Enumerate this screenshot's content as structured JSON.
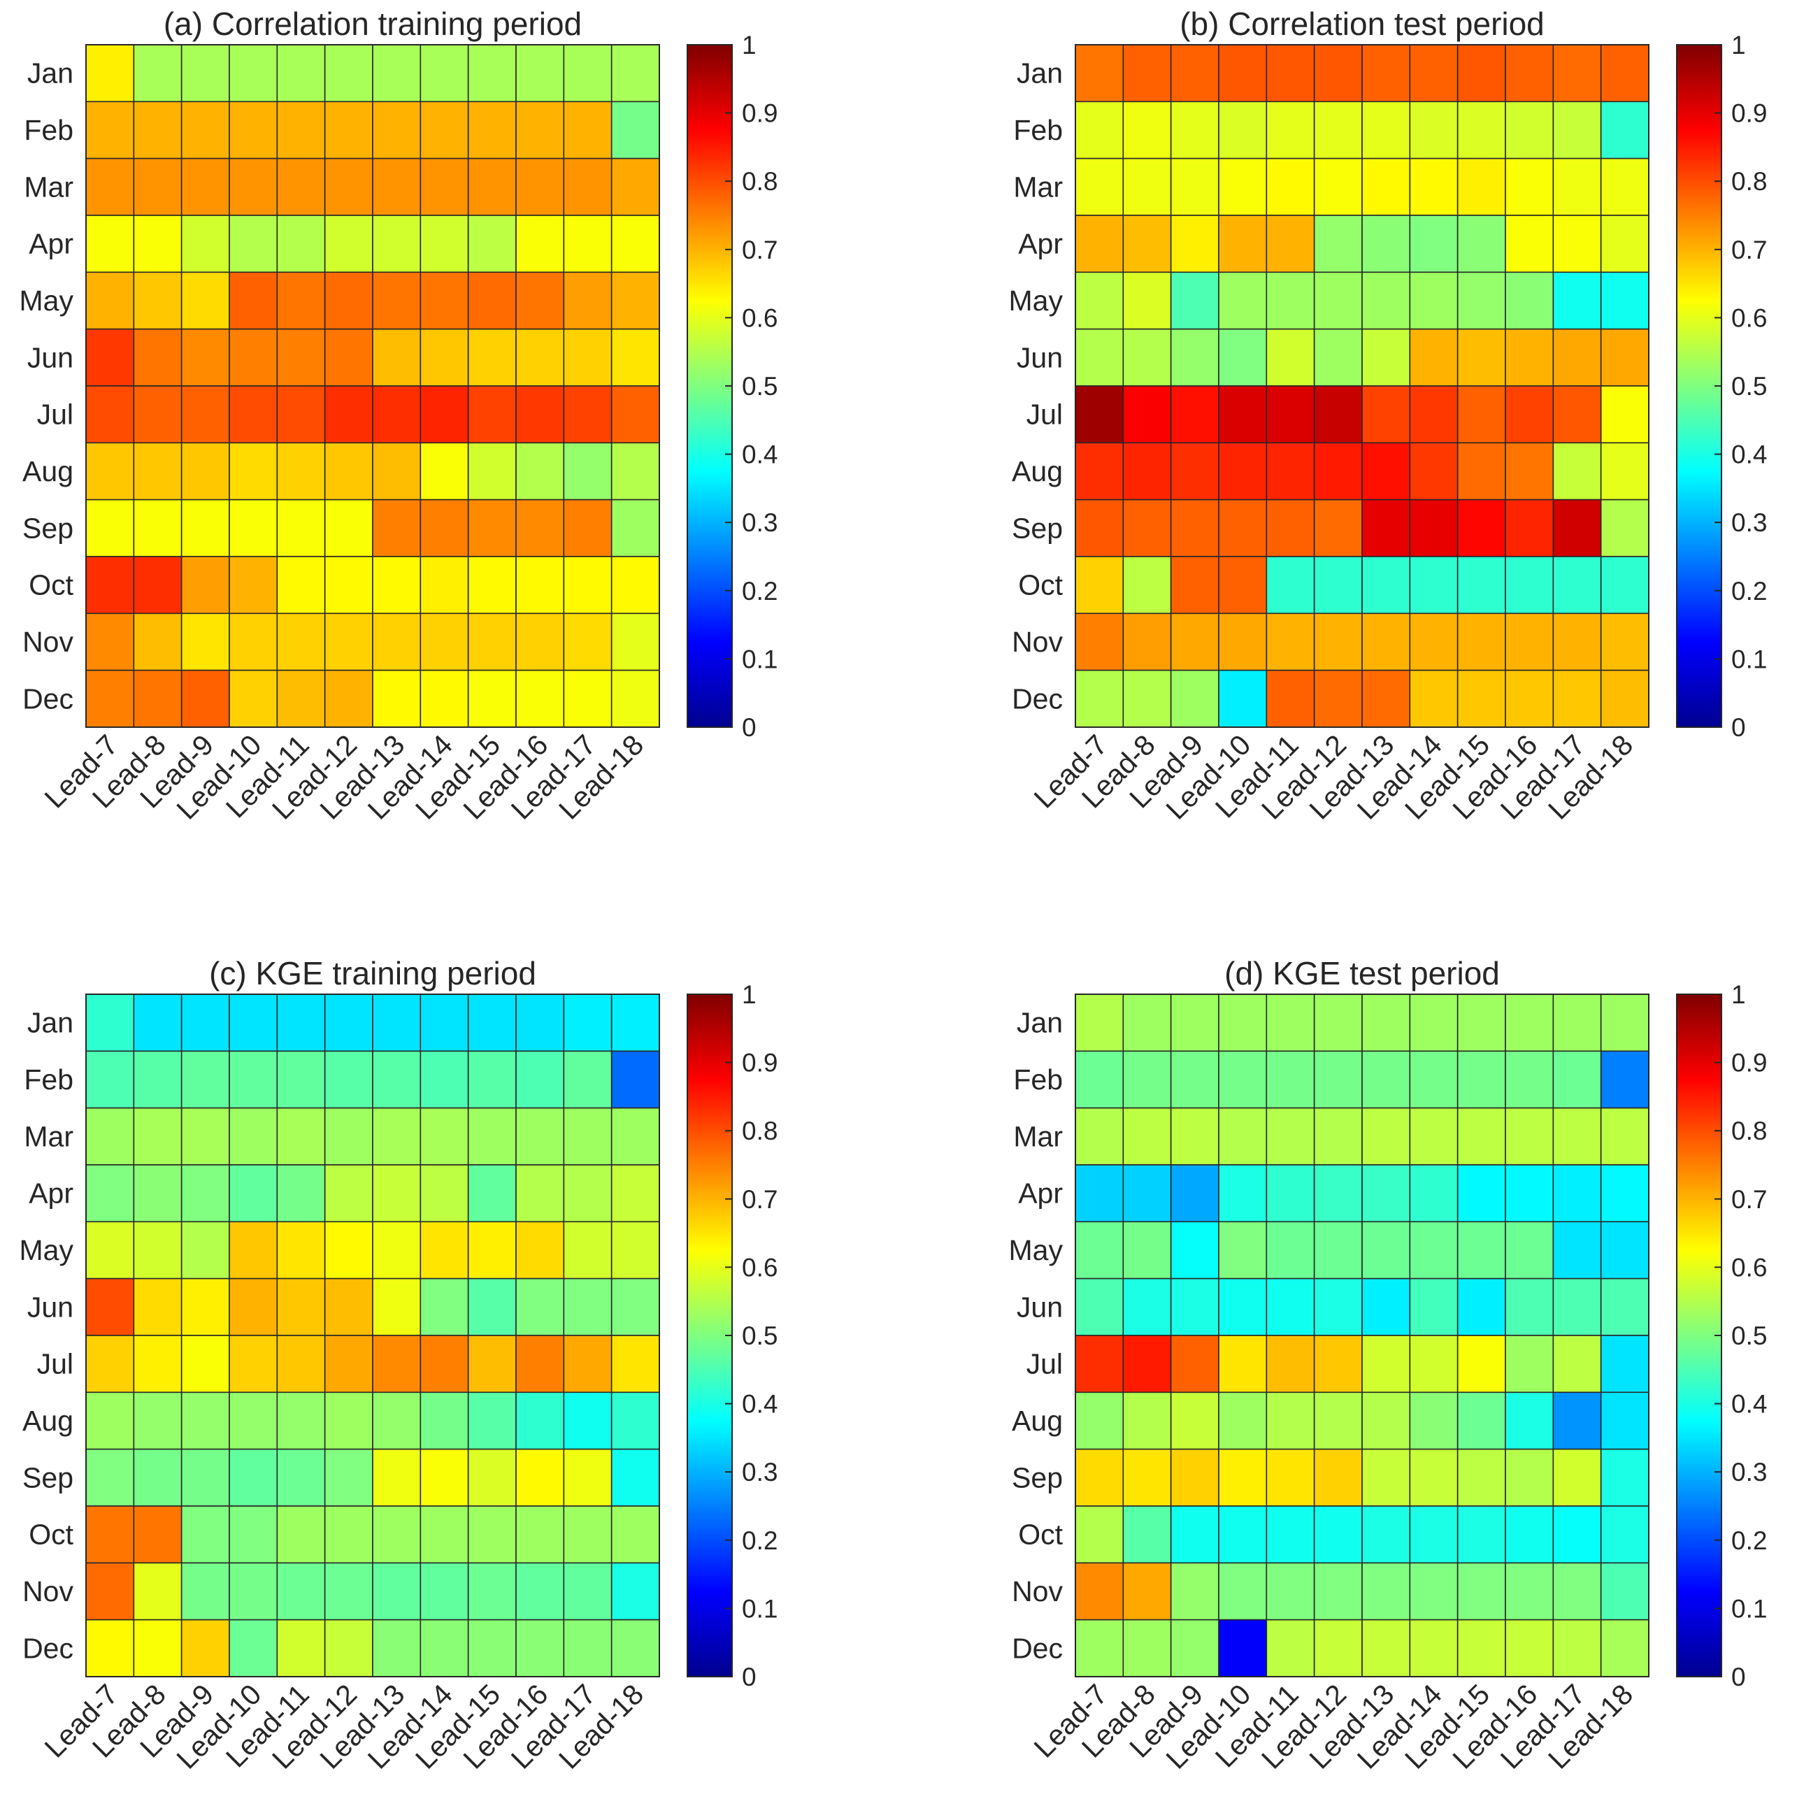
{
  "colormap": {
    "name": "jet",
    "stops": [
      "#00008F",
      "#0000FF",
      "#00FFFF",
      "#FFFF00",
      "#FF0000",
      "#800000"
    ],
    "stop_positions": [
      0,
      0.125,
      0.375,
      0.625,
      0.875,
      1
    ]
  },
  "chart_data": [
    {
      "type": "heatmap",
      "title": "(a) Correlation training period",
      "rows": [
        "Jan",
        "Feb",
        "Mar",
        "Apr",
        "May",
        "Jun",
        "Jul",
        "Aug",
        "Sep",
        "Oct",
        "Nov",
        "Dec"
      ],
      "columns": [
        "Lead-7",
        "Lead-8",
        "Lead-9",
        "Lead-10",
        "Lead-11",
        "Lead-12",
        "Lead-13",
        "Lead-14",
        "Lead-15",
        "Lead-16",
        "Lead-17",
        "Lead-18"
      ],
      "zlim": [
        0,
        1
      ],
      "colorbar_ticks": [
        "0",
        "0.1",
        "0.2",
        "0.3",
        "0.4",
        "0.5",
        "0.6",
        "0.7",
        "0.8",
        "0.9",
        "1"
      ],
      "values": [
        [
          0.64,
          0.54,
          0.54,
          0.54,
          0.54,
          0.54,
          0.54,
          0.54,
          0.54,
          0.54,
          0.54,
          0.54
        ],
        [
          0.7,
          0.7,
          0.7,
          0.7,
          0.7,
          0.7,
          0.7,
          0.7,
          0.7,
          0.7,
          0.7,
          0.49
        ],
        [
          0.73,
          0.73,
          0.73,
          0.73,
          0.73,
          0.73,
          0.73,
          0.73,
          0.73,
          0.73,
          0.73,
          0.71
        ],
        [
          0.62,
          0.62,
          0.58,
          0.55,
          0.55,
          0.58,
          0.58,
          0.58,
          0.56,
          0.62,
          0.62,
          0.62
        ],
        [
          0.7,
          0.68,
          0.66,
          0.78,
          0.76,
          0.77,
          0.76,
          0.76,
          0.77,
          0.76,
          0.72,
          0.7
        ],
        [
          0.82,
          0.76,
          0.74,
          0.75,
          0.75,
          0.76,
          0.69,
          0.68,
          0.67,
          0.67,
          0.67,
          0.65
        ],
        [
          0.8,
          0.78,
          0.78,
          0.8,
          0.8,
          0.83,
          0.83,
          0.84,
          0.81,
          0.82,
          0.81,
          0.78
        ],
        [
          0.68,
          0.68,
          0.68,
          0.66,
          0.67,
          0.68,
          0.69,
          0.62,
          0.58,
          0.55,
          0.52,
          0.55
        ],
        [
          0.62,
          0.62,
          0.62,
          0.62,
          0.62,
          0.62,
          0.75,
          0.75,
          0.74,
          0.74,
          0.75,
          0.53
        ],
        [
          0.83,
          0.83,
          0.72,
          0.7,
          0.63,
          0.63,
          0.63,
          0.64,
          0.63,
          0.63,
          0.63,
          0.63
        ],
        [
          0.74,
          0.69,
          0.65,
          0.67,
          0.67,
          0.67,
          0.67,
          0.67,
          0.67,
          0.67,
          0.66,
          0.6
        ],
        [
          0.75,
          0.76,
          0.78,
          0.67,
          0.69,
          0.7,
          0.63,
          0.63,
          0.62,
          0.62,
          0.62,
          0.61
        ]
      ]
    },
    {
      "type": "heatmap",
      "title": "(b) Correlation test period",
      "rows": [
        "Jan",
        "Feb",
        "Mar",
        "Apr",
        "May",
        "Jun",
        "Jul",
        "Aug",
        "Sep",
        "Oct",
        "Nov",
        "Dec"
      ],
      "columns": [
        "Lead-7",
        "Lead-8",
        "Lead-9",
        "Lead-10",
        "Lead-11",
        "Lead-12",
        "Lead-13",
        "Lead-14",
        "Lead-15",
        "Lead-16",
        "Lead-17",
        "Lead-18"
      ],
      "zlim": [
        0,
        1
      ],
      "colorbar_ticks": [
        "0",
        "0.1",
        "0.2",
        "0.3",
        "0.4",
        "0.5",
        "0.6",
        "0.7",
        "0.8",
        "0.9",
        "1"
      ],
      "values": [
        [
          0.76,
          0.78,
          0.78,
          0.79,
          0.79,
          0.79,
          0.78,
          0.78,
          0.79,
          0.78,
          0.77,
          0.78
        ],
        [
          0.6,
          0.61,
          0.6,
          0.59,
          0.6,
          0.6,
          0.6,
          0.59,
          0.59,
          0.58,
          0.57,
          0.42
        ],
        [
          0.61,
          0.61,
          0.61,
          0.62,
          0.63,
          0.62,
          0.63,
          0.63,
          0.64,
          0.62,
          0.61,
          0.61
        ],
        [
          0.7,
          0.69,
          0.64,
          0.7,
          0.7,
          0.52,
          0.51,
          0.5,
          0.51,
          0.62,
          0.62,
          0.6
        ],
        [
          0.56,
          0.59,
          0.45,
          0.53,
          0.53,
          0.53,
          0.53,
          0.53,
          0.52,
          0.51,
          0.39,
          0.39
        ],
        [
          0.55,
          0.55,
          0.52,
          0.5,
          0.58,
          0.53,
          0.57,
          0.7,
          0.69,
          0.7,
          0.71,
          0.71
        ],
        [
          0.97,
          0.88,
          0.86,
          0.91,
          0.91,
          0.93,
          0.81,
          0.82,
          0.78,
          0.81,
          0.79,
          0.62
        ],
        [
          0.83,
          0.84,
          0.83,
          0.84,
          0.84,
          0.85,
          0.86,
          0.82,
          0.77,
          0.76,
          0.57,
          0.6
        ],
        [
          0.79,
          0.78,
          0.78,
          0.78,
          0.78,
          0.77,
          0.9,
          0.9,
          0.87,
          0.84,
          0.92,
          0.55
        ],
        [
          0.67,
          0.56,
          0.78,
          0.78,
          0.42,
          0.42,
          0.42,
          0.42,
          0.42,
          0.42,
          0.42,
          0.42
        ],
        [
          0.75,
          0.72,
          0.71,
          0.71,
          0.7,
          0.7,
          0.7,
          0.7,
          0.7,
          0.7,
          0.7,
          0.69
        ],
        [
          0.55,
          0.55,
          0.53,
          0.36,
          0.78,
          0.77,
          0.77,
          0.68,
          0.68,
          0.68,
          0.68,
          0.69
        ]
      ]
    },
    {
      "type": "heatmap",
      "title": "(c) KGE training period",
      "rows": [
        "Jan",
        "Feb",
        "Mar",
        "Apr",
        "May",
        "Jun",
        "Jul",
        "Aug",
        "Sep",
        "Oct",
        "Nov",
        "Dec"
      ],
      "columns": [
        "Lead-7",
        "Lead-8",
        "Lead-9",
        "Lead-10",
        "Lead-11",
        "Lead-12",
        "Lead-13",
        "Lead-14",
        "Lead-15",
        "Lead-16",
        "Lead-17",
        "Lead-18"
      ],
      "zlim": [
        0,
        1
      ],
      "colorbar_ticks": [
        "0",
        "0.1",
        "0.2",
        "0.3",
        "0.4",
        "0.5",
        "0.6",
        "0.7",
        "0.8",
        "0.9",
        "1"
      ],
      "values": [
        [
          0.42,
          0.35,
          0.35,
          0.35,
          0.35,
          0.35,
          0.35,
          0.35,
          0.35,
          0.35,
          0.36,
          0.36
        ],
        [
          0.45,
          0.46,
          0.47,
          0.47,
          0.47,
          0.46,
          0.46,
          0.45,
          0.46,
          0.45,
          0.47,
          0.23
        ],
        [
          0.53,
          0.54,
          0.54,
          0.53,
          0.54,
          0.53,
          0.54,
          0.54,
          0.53,
          0.53,
          0.53,
          0.53
        ],
        [
          0.5,
          0.51,
          0.5,
          0.47,
          0.49,
          0.56,
          0.57,
          0.56,
          0.47,
          0.55,
          0.55,
          0.57
        ],
        [
          0.59,
          0.58,
          0.55,
          0.68,
          0.65,
          0.63,
          0.61,
          0.65,
          0.64,
          0.66,
          0.58,
          0.58
        ],
        [
          0.8,
          0.66,
          0.64,
          0.7,
          0.68,
          0.69,
          0.61,
          0.5,
          0.46,
          0.5,
          0.5,
          0.5
        ],
        [
          0.67,
          0.64,
          0.62,
          0.67,
          0.68,
          0.71,
          0.74,
          0.75,
          0.69,
          0.75,
          0.71,
          0.65
        ],
        [
          0.53,
          0.52,
          0.52,
          0.52,
          0.52,
          0.53,
          0.52,
          0.49,
          0.46,
          0.42,
          0.39,
          0.42
        ],
        [
          0.5,
          0.49,
          0.49,
          0.47,
          0.48,
          0.5,
          0.61,
          0.62,
          0.59,
          0.63,
          0.61,
          0.39
        ],
        [
          0.76,
          0.76,
          0.5,
          0.5,
          0.53,
          0.53,
          0.53,
          0.53,
          0.53,
          0.53,
          0.53,
          0.53
        ],
        [
          0.77,
          0.6,
          0.49,
          0.49,
          0.48,
          0.48,
          0.47,
          0.47,
          0.48,
          0.47,
          0.47,
          0.4
        ],
        [
          0.63,
          0.62,
          0.67,
          0.48,
          0.58,
          0.57,
          0.51,
          0.51,
          0.51,
          0.51,
          0.51,
          0.51
        ]
      ]
    },
    {
      "type": "heatmap",
      "title": "(d) KGE test period",
      "rows": [
        "Jan",
        "Feb",
        "Mar",
        "Apr",
        "May",
        "Jun",
        "Jul",
        "Aug",
        "Sep",
        "Oct",
        "Nov",
        "Dec"
      ],
      "columns": [
        "Lead-7",
        "Lead-8",
        "Lead-9",
        "Lead-10",
        "Lead-11",
        "Lead-12",
        "Lead-13",
        "Lead-14",
        "Lead-15",
        "Lead-16",
        "Lead-17",
        "Lead-18"
      ],
      "zlim": [
        0,
        1
      ],
      "colorbar_ticks": [
        "0",
        "0.1",
        "0.2",
        "0.3",
        "0.4",
        "0.5",
        "0.6",
        "0.7",
        "0.8",
        "0.9",
        "1"
      ],
      "values": [
        [
          0.55,
          0.53,
          0.53,
          0.53,
          0.53,
          0.53,
          0.53,
          0.53,
          0.53,
          0.53,
          0.53,
          0.53
        ],
        [
          0.48,
          0.49,
          0.49,
          0.49,
          0.49,
          0.49,
          0.49,
          0.49,
          0.49,
          0.49,
          0.48,
          0.25
        ],
        [
          0.55,
          0.56,
          0.56,
          0.55,
          0.55,
          0.55,
          0.56,
          0.56,
          0.56,
          0.56,
          0.56,
          0.56
        ],
        [
          0.33,
          0.33,
          0.29,
          0.4,
          0.42,
          0.43,
          0.43,
          0.42,
          0.37,
          0.37,
          0.36,
          0.37
        ],
        [
          0.48,
          0.49,
          0.38,
          0.5,
          0.48,
          0.48,
          0.48,
          0.48,
          0.48,
          0.48,
          0.35,
          0.35
        ],
        [
          0.45,
          0.4,
          0.4,
          0.39,
          0.39,
          0.4,
          0.36,
          0.44,
          0.36,
          0.45,
          0.45,
          0.45
        ],
        [
          0.83,
          0.85,
          0.78,
          0.65,
          0.69,
          0.68,
          0.58,
          0.58,
          0.62,
          0.53,
          0.56,
          0.35
        ],
        [
          0.52,
          0.55,
          0.57,
          0.53,
          0.55,
          0.55,
          0.55,
          0.51,
          0.48,
          0.4,
          0.27,
          0.35
        ],
        [
          0.66,
          0.65,
          0.67,
          0.64,
          0.65,
          0.67,
          0.57,
          0.57,
          0.56,
          0.55,
          0.58,
          0.4
        ],
        [
          0.55,
          0.46,
          0.39,
          0.39,
          0.39,
          0.39,
          0.4,
          0.4,
          0.4,
          0.39,
          0.38,
          0.4
        ],
        [
          0.74,
          0.71,
          0.52,
          0.5,
          0.5,
          0.5,
          0.5,
          0.5,
          0.5,
          0.5,
          0.5,
          0.45
        ],
        [
          0.53,
          0.53,
          0.52,
          0.12,
          0.56,
          0.57,
          0.57,
          0.57,
          0.57,
          0.57,
          0.56,
          0.54
        ]
      ]
    }
  ]
}
